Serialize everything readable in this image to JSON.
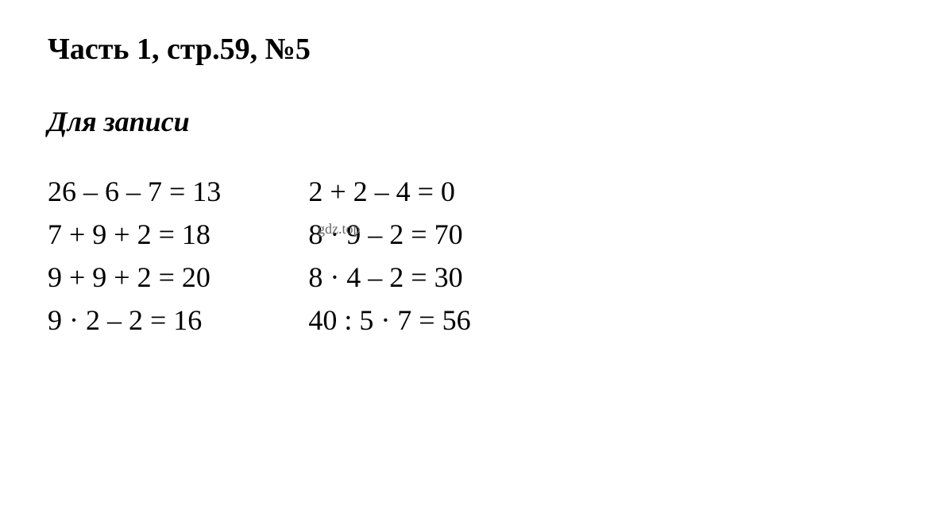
{
  "heading": "Часть 1, стр.59, №5",
  "subheading": "Для записи",
  "watermark": "gdz.top",
  "columns": {
    "left": {
      "row1": "26 – 6 – 7 = 13",
      "row2": "7 + 9 + 2 = 18",
      "row3": "9 + 9 + 2 = 20",
      "row4": "9 · 2 – 2 = 16"
    },
    "right": {
      "row1": "2 + 2 – 4 = 0",
      "row2": "8 · 9 – 2 = 70",
      "row3": "8 · 4 – 2 = 30",
      "row4": "40 : 5 · 7 = 56"
    }
  },
  "styling": {
    "background_color": "#ffffff",
    "text_color": "#000000",
    "watermark_color": "#666666",
    "heading_fontsize": 38,
    "subheading_fontsize": 36,
    "equation_fontsize": 36,
    "watermark_fontsize": 18,
    "font_family": "Times New Roman",
    "line_height": 1.5,
    "column_gap": 110
  }
}
